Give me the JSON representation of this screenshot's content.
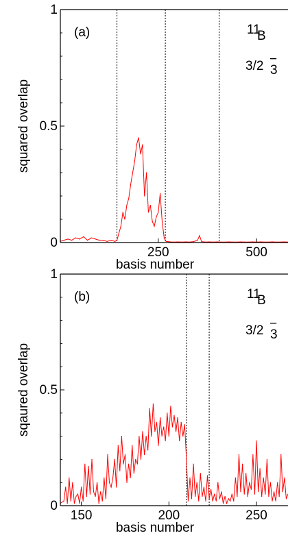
{
  "chart_data": [
    {
      "type": "line",
      "panel_label": "(a)",
      "nucleus_mass": "11",
      "nucleus_symbol": "B",
      "state_j": "3/2",
      "state_parity": "−",
      "state_index": "3",
      "xlabel": "basis number",
      "ylabel": "squared overlap",
      "xlim": [
        1,
        580
      ],
      "ylim": [
        0,
        1
      ],
      "xticks": [
        250,
        500
      ],
      "yticks": [
        0,
        0.5,
        1
      ],
      "ytick_labels": [
        "0",
        "0.5",
        "1"
      ],
      "dividers": [
        145,
        268,
        405
      ],
      "series_color": "#ff0000",
      "series": [
        {
          "x": [
            1,
            10,
            20,
            30,
            40,
            50,
            60,
            70,
            80,
            90,
            100,
            110,
            120,
            130,
            140,
            145,
            150,
            155,
            160,
            165,
            170,
            175,
            180,
            185,
            190,
            195,
            200,
            205,
            210,
            215,
            220,
            225,
            230,
            235,
            240,
            245,
            250,
            255,
            260,
            265,
            270,
            280,
            290,
            300,
            310,
            320,
            330,
            340,
            350,
            355,
            360,
            370,
            380,
            390,
            400,
            410,
            420,
            430,
            440,
            450,
            460,
            470,
            480,
            490,
            500,
            510,
            520,
            530,
            540,
            550,
            560,
            570,
            580
          ],
          "y": [
            0.005,
            0.01,
            0.015,
            0.01,
            0.02,
            0.015,
            0.025,
            0.01,
            0.02,
            0.015,
            0.01,
            0.01,
            0.005,
            0.01,
            0.005,
            0.01,
            0.04,
            0.07,
            0.13,
            0.1,
            0.16,
            0.19,
            0.25,
            0.3,
            0.35,
            0.42,
            0.45,
            0.38,
            0.42,
            0.2,
            0.3,
            0.13,
            0.16,
            0.09,
            0.07,
            0.11,
            0.13,
            0.21,
            0.09,
            0.02,
            0.005,
            0.003,
            0.002,
            0.003,
            0.002,
            0.003,
            0.002,
            0.004,
            0.01,
            0.03,
            0.004,
            0.002,
            0.003,
            0.002,
            0.003,
            0.002,
            0.002,
            0.003,
            0.002,
            0.002,
            0.003,
            0.002,
            0.002,
            0.003,
            0.002,
            0.003,
            0.002,
            0.002,
            0.003,
            0.002,
            0.002,
            0.003,
            0.002
          ]
        }
      ]
    },
    {
      "type": "line",
      "panel_label": "(b)",
      "nucleus_mass": "11",
      "nucleus_symbol": "B",
      "state_j": "3/2",
      "state_parity": "−",
      "state_index": "3",
      "xlabel": "basis number",
      "ylabel": "sqaured overlap",
      "xlim": [
        138,
        268
      ],
      "ylim": [
        0,
        1
      ],
      "xticks": [
        150,
        200,
        250
      ],
      "yticks": [
        0,
        0.5,
        1
      ],
      "ytick_labels": [
        "0",
        "0.5",
        "1"
      ],
      "dividers": [
        210,
        223
      ],
      "series_color": "#ff0000",
      "series": [
        {
          "x": [
            138,
            140,
            141,
            142,
            143,
            144,
            145,
            146,
            147,
            148,
            149,
            150,
            151,
            152,
            153,
            154,
            155,
            156,
            157,
            158,
            159,
            160,
            161,
            162,
            163,
            164,
            165,
            166,
            167,
            168,
            169,
            170,
            171,
            172,
            173,
            174,
            175,
            176,
            177,
            178,
            179,
            180,
            181,
            182,
            183,
            184,
            185,
            186,
            187,
            188,
            189,
            190,
            191,
            192,
            193,
            194,
            195,
            196,
            197,
            198,
            199,
            200,
            201,
            202,
            203,
            204,
            205,
            206,
            207,
            208,
            209,
            210,
            211,
            212,
            213,
            214,
            215,
            216,
            217,
            218,
            219,
            220,
            221,
            222,
            223,
            224,
            225,
            226,
            227,
            228,
            229,
            230,
            231,
            232,
            233,
            234,
            235,
            236,
            237,
            238,
            239,
            240,
            241,
            242,
            243,
            244,
            245,
            246,
            247,
            248,
            249,
            250,
            251,
            252,
            253,
            254,
            255,
            256,
            257,
            258,
            259,
            260,
            261,
            262,
            263,
            264,
            265,
            266,
            267,
            268
          ],
          "y": [
            0.01,
            0.02,
            0.08,
            0.01,
            0.12,
            0.02,
            0.1,
            0.01,
            0.04,
            0.05,
            0.01,
            0.08,
            0.02,
            0.18,
            0.04,
            0.17,
            0.05,
            0.2,
            0.06,
            0.04,
            0.1,
            0.01,
            0.06,
            0.02,
            0.12,
            0.03,
            0.22,
            0.1,
            0.08,
            0.12,
            0.2,
            0.08,
            0.26,
            0.15,
            0.3,
            0.18,
            0.22,
            0.1,
            0.18,
            0.12,
            0.26,
            0.14,
            0.2,
            0.18,
            0.3,
            0.2,
            0.32,
            0.22,
            0.3,
            0.24,
            0.42,
            0.3,
            0.44,
            0.32,
            0.36,
            0.26,
            0.38,
            0.3,
            0.34,
            0.28,
            0.4,
            0.3,
            0.43,
            0.34,
            0.39,
            0.32,
            0.38,
            0.28,
            0.36,
            0.3,
            0.35,
            0.2,
            0.02,
            0.12,
            0.03,
            0.18,
            0.04,
            0.1,
            0.02,
            0.14,
            0.04,
            0.08,
            0.02,
            0.13,
            0.03,
            0.07,
            0.02,
            0.05,
            0.02,
            0.1,
            0.03,
            0.06,
            0.01,
            0.04,
            0.01,
            0.03,
            0.02,
            0.05,
            0.02,
            0.12,
            0.04,
            0.22,
            0.06,
            0.18,
            0.05,
            0.14,
            0.04,
            0.1,
            0.07,
            0.22,
            0.05,
            0.28,
            0.06,
            0.16,
            0.04,
            0.12,
            0.05,
            0.2,
            0.04,
            0.1,
            0.02,
            0.06,
            0.02,
            0.1,
            0.04,
            0.22,
            0.06,
            0.12,
            0.03,
            0.05
          ]
        }
      ]
    }
  ]
}
